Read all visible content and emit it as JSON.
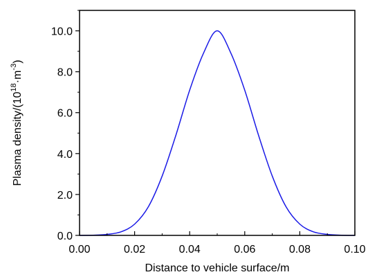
{
  "chart_data": {
    "type": "line",
    "title": "",
    "xlabel": "Distance to vehicle surface/m",
    "ylabel_parts": {
      "prefix": "Plasma density/(10",
      "sup1": "18",
      "mid": "·m",
      "sup2": "-3",
      "suffix": ")"
    },
    "xlim": [
      0.0,
      0.1
    ],
    "ylim": [
      0.0,
      11.0
    ],
    "x_ticks": [
      {
        "value": 0.0,
        "label": "0.00"
      },
      {
        "value": 0.02,
        "label": "0.02"
      },
      {
        "value": 0.04,
        "label": "0.04"
      },
      {
        "value": 0.06,
        "label": "0.06"
      },
      {
        "value": 0.08,
        "label": "0.08"
      },
      {
        "value": 0.1,
        "label": "0.10"
      }
    ],
    "y_ticks": [
      {
        "value": 0.0,
        "label": "0.0"
      },
      {
        "value": 2.0,
        "label": "2.0"
      },
      {
        "value": 4.0,
        "label": "4.0"
      },
      {
        "value": 6.0,
        "label": "6.0"
      },
      {
        "value": 8.0,
        "label": "8.0"
      },
      {
        "value": 10.0,
        "label": "10.0"
      }
    ],
    "grid": false,
    "legend": "none",
    "series": [
      {
        "color": "#1a1ae6",
        "points": [
          [
            0.0,
            0.0
          ],
          [
            0.005,
            0.01
          ],
          [
            0.01,
            0.05
          ],
          [
            0.015,
            0.17
          ],
          [
            0.02,
            0.55
          ],
          [
            0.025,
            1.4
          ],
          [
            0.03,
            2.9
          ],
          [
            0.035,
            4.9
          ],
          [
            0.04,
            7.1
          ],
          [
            0.045,
            8.9
          ],
          [
            0.05,
            10.0
          ],
          [
            0.055,
            8.9
          ],
          [
            0.06,
            7.1
          ],
          [
            0.065,
            4.9
          ],
          [
            0.07,
            2.9
          ],
          [
            0.075,
            1.4
          ],
          [
            0.08,
            0.55
          ],
          [
            0.085,
            0.17
          ],
          [
            0.09,
            0.05
          ],
          [
            0.095,
            0.01
          ],
          [
            0.1,
            0.0
          ]
        ]
      }
    ]
  }
}
